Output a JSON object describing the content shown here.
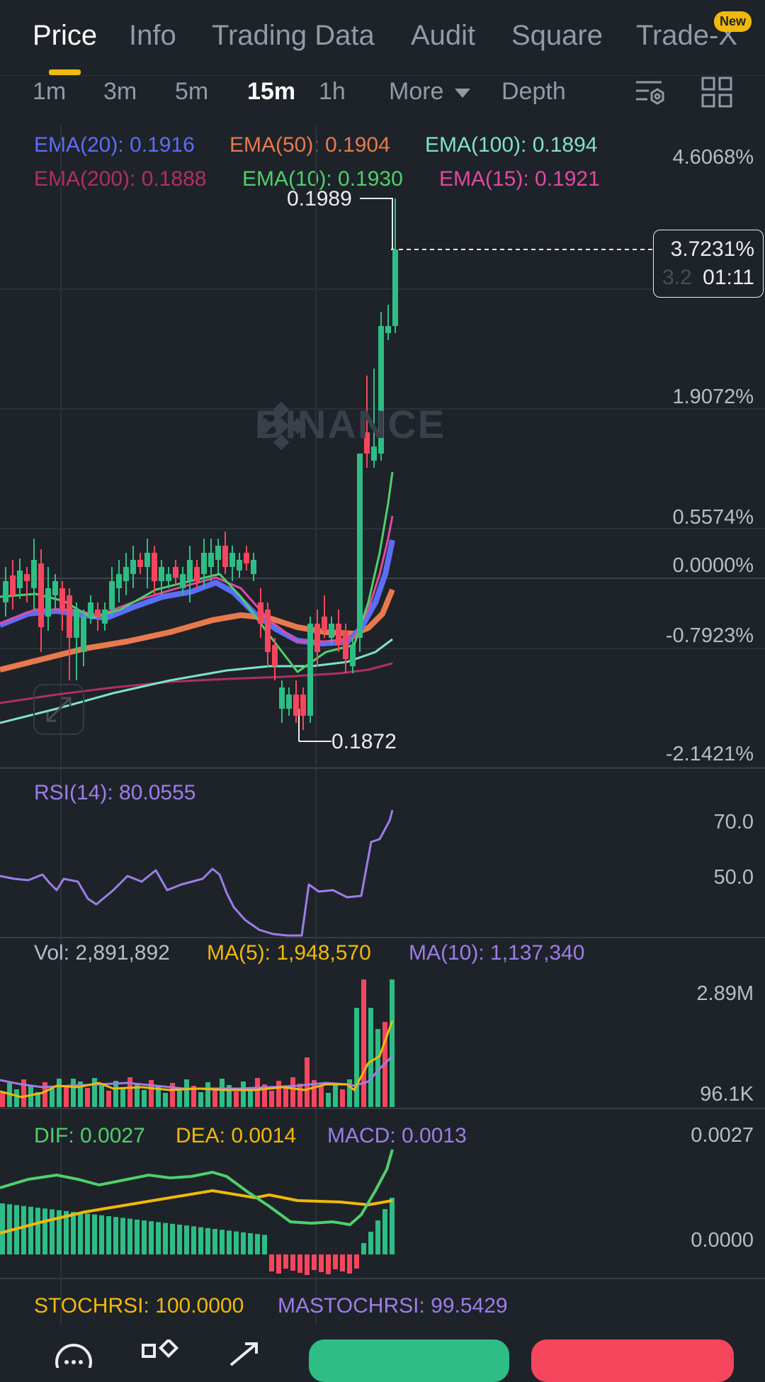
{
  "tabs": [
    {
      "label": "Price",
      "active": true
    },
    {
      "label": "Info",
      "active": false
    },
    {
      "label": "Trading Data",
      "active": false
    },
    {
      "label": "Audit",
      "active": false
    },
    {
      "label": "Square",
      "active": false
    },
    {
      "label": "Trade-X",
      "active": false
    }
  ],
  "new_badge": "New",
  "intervals": [
    "1m",
    "3m",
    "5m",
    "15m",
    "1h",
    "More",
    "Depth"
  ],
  "active_interval": "15m",
  "ema": {
    "ema20": "EMA(20): 0.1916",
    "ema50": "EMA(50): 0.1904",
    "ema100": "EMA(100): 0.1894",
    "ema200": "EMA(200): 0.1888",
    "ema10": "EMA(10): 0.1930",
    "ema15": "EMA(15): 0.1921"
  },
  "price_axis": [
    "4.6068%",
    "1.9072%",
    "0.5574%",
    "0.0000%",
    "-0.7923%",
    "-2.1421%"
  ],
  "current": {
    "pct": "3.7231%",
    "countdown": "01:11",
    "hidden": "3.2"
  },
  "high_label": "0.1989",
  "low_label": "0.1872",
  "watermark": "BINANCE",
  "rsi": {
    "label": "RSI(14): 80.0555",
    "axis": [
      "70.0",
      "50.0"
    ]
  },
  "vol": {
    "vol": "Vol: 2,891,892",
    "ma5": "MA(5): 1,948,570",
    "ma10": "MA(10): 1,137,340",
    "axis": [
      "2.89M",
      "96.1K"
    ]
  },
  "macd": {
    "dif": "DIF: 0.0027",
    "dea": "DEA: 0.0014",
    "macd": "MACD: 0.0013",
    "axis": [
      "0.0027",
      "0.0000"
    ]
  },
  "stoch": {
    "k": "STOCHRSI: 100.0000",
    "d": "MASTOCHRSI: 99.5429"
  },
  "colors": {
    "up": "#2ebd85",
    "down": "#f6465d",
    "accent": "#f0b90b",
    "bg": "#1e2329"
  },
  "icons": [
    "chart-settings-icon",
    "layout-grid-icon",
    "expand-icon",
    "chat-icon",
    "apps-icon",
    "share-icon"
  ]
}
